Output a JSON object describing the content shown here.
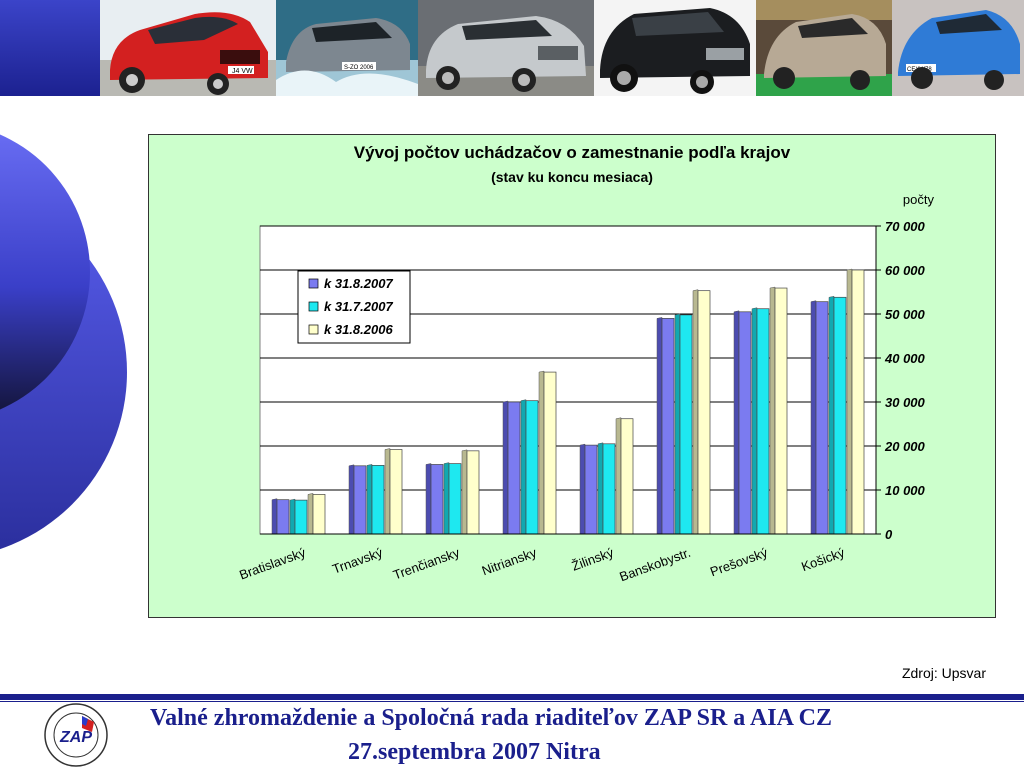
{
  "banner": {
    "photos": [
      "red-hatchback-photo",
      "silver-suv-splash-photo",
      "silver-suv-photo",
      "black-suv-photo",
      "beige-hatchback-photo",
      "blue-hatchback-photo"
    ],
    "plate_1": "J4 VW",
    "plate_2": "S-ZO 2006",
    "plate_6": "CEXW78"
  },
  "colors": {
    "banner": "#1a1f8c",
    "chart_background": "#ccffcc",
    "series_2007_08": "#7b7bf0",
    "series_2007_07": "#1ee8f0",
    "series_2006_08": "#ffffcc",
    "footer_text": "#1a1f8c"
  },
  "chart_data": {
    "type": "bar",
    "title": "Vývoj počtov uchádzačov o zamestnanie podľa krajov",
    "subtitle": "(stav ku koncu mesiaca)",
    "ylabel": "počty",
    "ylim": [
      0,
      70000
    ],
    "yticks": [
      0,
      10000,
      20000,
      30000,
      40000,
      50000,
      60000,
      70000
    ],
    "ytick_labels": [
      "0",
      "10 000",
      "20 000",
      "30 000",
      "40 000",
      "50 000",
      "60 000",
      "70 000"
    ],
    "grid": true,
    "legend_position": "top-left",
    "categories": [
      "Bratislavský",
      "Trnavský",
      "Trenčiansky",
      "Nitriansky",
      "Žilinský",
      "Banskobystr.",
      "Prešovský",
      "Košický"
    ],
    "series": [
      {
        "name": "k 31.8.2007",
        "values": [
          7800,
          15500,
          15800,
          30000,
          20200,
          49000,
          50500,
          52800
        ]
      },
      {
        "name": "k 31.7.2007",
        "values": [
          7700,
          15600,
          16000,
          30300,
          20500,
          49800,
          51200,
          53800
        ]
      },
      {
        "name": "k 31.8.2006",
        "values": [
          9000,
          19200,
          18900,
          36800,
          26200,
          55300,
          55900,
          60000
        ]
      }
    ]
  },
  "source": "Zdroj: Upsvar",
  "footer": {
    "line1": "Valné zhromaždenie a Spoločná rada riaditeľov ZAP SR a AIA CZ",
    "line2": "27.septembra 2007 Nitra",
    "logo_text": "ZAP"
  }
}
